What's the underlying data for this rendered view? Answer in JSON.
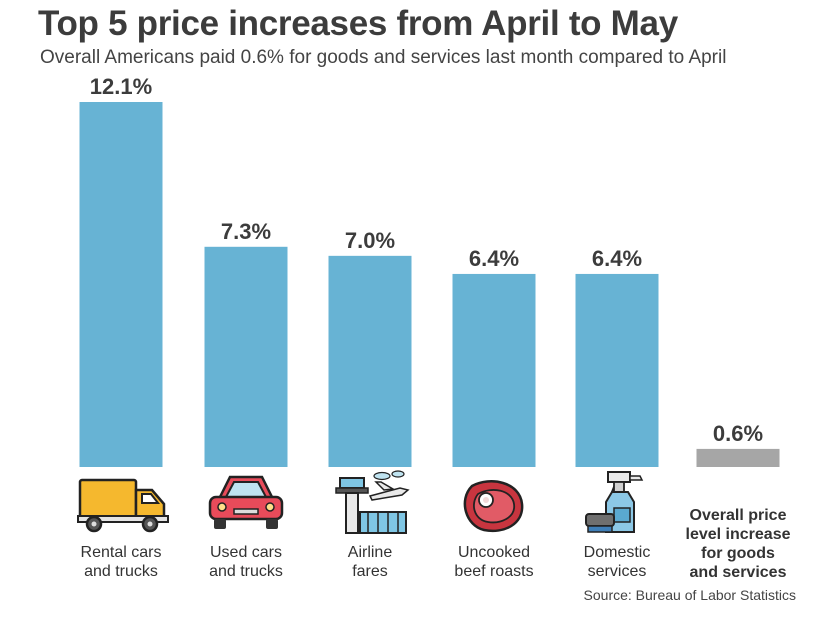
{
  "title": "Top 5 price increases from April to May",
  "subtitle": "Overall Americans paid 0.6% for goods and services last month compared to April",
  "source": "Source: Bureau of Labor Statistics",
  "colors": {
    "bar": "#67b3d4",
    "overall_bar": "#a6a6a6"
  },
  "chart_data": {
    "type": "bar",
    "categories": [
      "Rental cars and trucks",
      "Used cars and trucks",
      "Airline fares",
      "Uncooked beef roasts",
      "Domestic services",
      "Overall price level increase for goods and services"
    ],
    "category_lines": [
      [
        "Rental cars",
        "and trucks"
      ],
      [
        "Used cars",
        "and trucks"
      ],
      [
        "Airline",
        "fares"
      ],
      [
        "Uncooked",
        "beef roasts"
      ],
      [
        "Domestic",
        "services"
      ],
      [
        "Overall price",
        "level increase",
        "for goods",
        "and services"
      ]
    ],
    "values": [
      12.1,
      7.3,
      7.0,
      6.4,
      6.4,
      0.6
    ],
    "value_labels": [
      "12.1%",
      "7.3%",
      "7.0%",
      "6.4%",
      "6.4%",
      "0.6%"
    ],
    "icons": [
      "truck-icon",
      "car-icon",
      "airport-icon",
      "steak-icon",
      "cleaning-spray-icon",
      ""
    ],
    "ylim": [
      0,
      12.1
    ]
  }
}
